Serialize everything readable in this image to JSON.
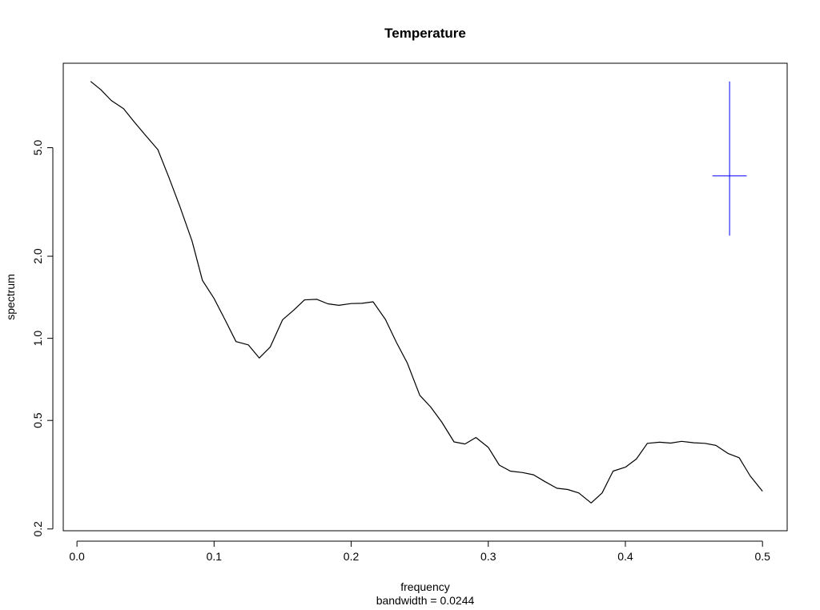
{
  "chart_data": {
    "type": "line",
    "title": "Temperature",
    "xlabel": "frequency",
    "sub_label": "bandwidth = 0.0244",
    "ylabel": "spectrum",
    "y_scale": "log",
    "xlim": [
      -0.01,
      0.518
    ],
    "ylim": [
      0.197,
      10.2
    ],
    "x_ticks": [
      0.0,
      0.1,
      0.2,
      0.3,
      0.4,
      0.5
    ],
    "x_tick_labels": [
      "0.0",
      "0.1",
      "0.2",
      "0.3",
      "0.4",
      "0.5"
    ],
    "y_ticks": [
      0.2,
      0.5,
      1.0,
      2.0,
      5.0
    ],
    "y_tick_labels": [
      "0.2",
      "0.5",
      "1.0",
      "2.0",
      "5.0"
    ],
    "series": [
      {
        "color": "#000000",
        "x": [
          0.01,
          0.0175,
          0.025,
          0.034,
          0.042,
          0.05,
          0.059,
          0.067,
          0.075,
          0.084,
          0.0915,
          0.1,
          0.108,
          0.116,
          0.125,
          0.133,
          0.141,
          0.15,
          0.158,
          0.166,
          0.175,
          0.183,
          0.191,
          0.2,
          0.208,
          0.216,
          0.225,
          0.233,
          0.241,
          0.25,
          0.258,
          0.266,
          0.275,
          0.283,
          0.291,
          0.3,
          0.308,
          0.316,
          0.325,
          0.333,
          0.341,
          0.35,
          0.358,
          0.366,
          0.375,
          0.383,
          0.391,
          0.4,
          0.408,
          0.416,
          0.425,
          0.433,
          0.441,
          0.45,
          0.458,
          0.466,
          0.475,
          0.483,
          0.491,
          0.5
        ],
        "y": [
          8.75,
          8.15,
          7.45,
          6.95,
          6.2,
          5.55,
          4.92,
          3.9,
          3.05,
          2.27,
          1.63,
          1.4,
          1.17,
          0.973,
          0.946,
          0.847,
          0.93,
          1.17,
          1.267,
          1.383,
          1.39,
          1.338,
          1.321,
          1.341,
          1.344,
          1.361,
          1.173,
          0.967,
          0.811,
          0.618,
          0.56,
          0.494,
          0.417,
          0.41,
          0.433,
          0.398,
          0.343,
          0.326,
          0.322,
          0.316,
          0.299,
          0.282,
          0.279,
          0.271,
          0.249,
          0.271,
          0.326,
          0.337,
          0.361,
          0.412,
          0.416,
          0.413,
          0.419,
          0.414,
          0.412,
          0.405,
          0.378,
          0.365,
          0.313,
          0.275
        ]
      }
    ],
    "confidence_marker": {
      "color": "#0000ff",
      "x": 0.476,
      "y": 3.94,
      "y_low": 2.38,
      "y_high": 8.75,
      "half_width_x": 0.0125
    }
  }
}
